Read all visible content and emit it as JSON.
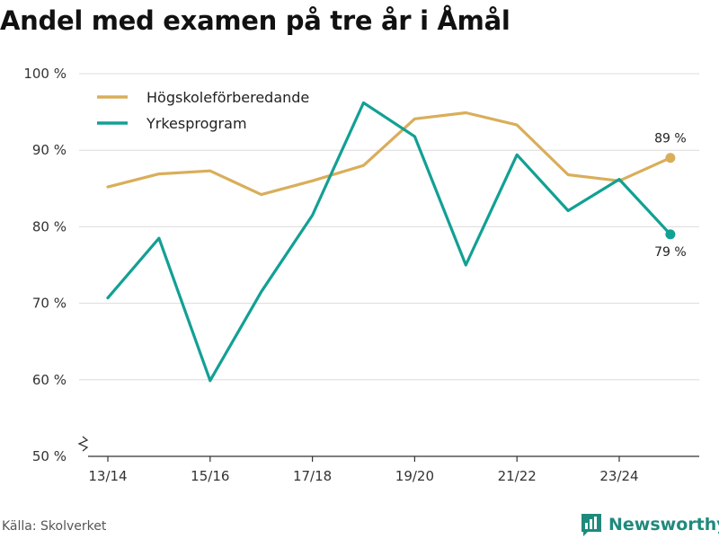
{
  "title": "Andel med examen på tre år i Åmål",
  "source": "Källa: Skolverket",
  "brand": {
    "name": "Newsworthy",
    "icon": "newsworthy-logo-icon",
    "color": "#1f8a7c"
  },
  "chart_data": {
    "type": "line",
    "title": "Andel med examen på tre år i Åmål",
    "xlabel": "",
    "ylabel": "",
    "ylim": [
      50,
      100
    ],
    "y_ticks": [
      50,
      60,
      70,
      80,
      90,
      100
    ],
    "y_tick_labels": [
      "50 %",
      "60 %",
      "70 %",
      "80 %",
      "90 %",
      "100 %"
    ],
    "y_axis_break": true,
    "grid": true,
    "legend_position": "top-left",
    "x": [
      "13/14",
      "14/15",
      "15/16",
      "16/17",
      "17/18",
      "18/19",
      "19/20",
      "20/21",
      "21/22",
      "22/23",
      "23/24",
      "24/25"
    ],
    "x_tick_labels": [
      "13/14",
      "15/16",
      "17/18",
      "19/20",
      "21/22",
      "23/24"
    ],
    "series": [
      {
        "name": "Högskoleförberedande",
        "color": "#d9ae5a",
        "values": [
          85.2,
          86.9,
          87.3,
          84.2,
          86.0,
          88.0,
          94.1,
          94.9,
          93.3,
          86.8,
          86.0,
          89.0
        ],
        "end_label": "89 %"
      },
      {
        "name": "Yrkesprogram",
        "color": "#12a094",
        "values": [
          70.7,
          78.5,
          59.9,
          71.5,
          81.5,
          96.2,
          91.8,
          75.0,
          89.4,
          82.1,
          86.2,
          79.0
        ],
        "end_label": "79 %"
      }
    ]
  }
}
